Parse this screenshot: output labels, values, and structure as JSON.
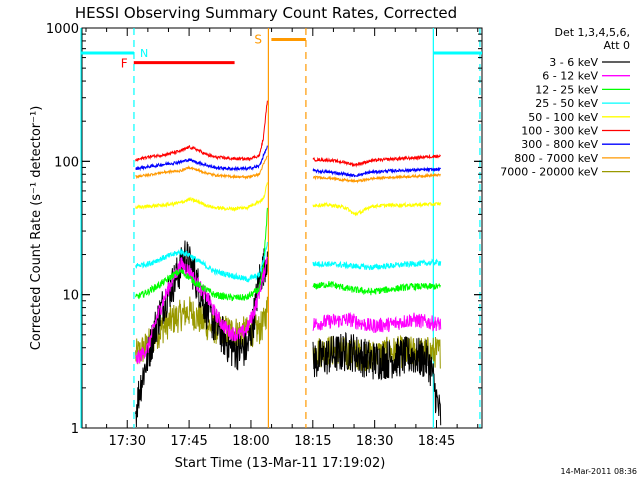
{
  "chart_data": {
    "type": "line",
    "title": "HESSI Observing Summary Count Rates, Corrected",
    "xlabel": "Start Time (13-Mar-11 17:19:02)",
    "ylabel": "Corrected Count Rate (s⁻¹ detector⁻¹)",
    "x_unit": "minutes after 17:19:02",
    "xlim": [
      0,
      97
    ],
    "ylim": [
      1,
      1000
    ],
    "y_scale": "log",
    "x_ticks": [
      {
        "label": "17:30",
        "value": 10.97
      },
      {
        "label": "17:45",
        "value": 25.97
      },
      {
        "label": "18:00",
        "value": 40.97
      },
      {
        "label": "18:15",
        "value": 55.97
      },
      {
        "label": "18:30",
        "value": 70.97
      },
      {
        "label": "18:45",
        "value": 85.97
      }
    ],
    "y_ticks": [
      {
        "label": "1",
        "value": 1
      },
      {
        "label": "10",
        "value": 10
      },
      {
        "label": "100",
        "value": 100
      },
      {
        "label": "1000",
        "value": 1000
      }
    ],
    "legend_title": [
      "Det 1,3,4,5,6,",
      "Att 0"
    ],
    "legend_position": "right, outside plot",
    "gap": [
      45,
      56
    ],
    "series": [
      {
        "name": "3 - 6 keV",
        "color": "#000000",
        "noise": 0.35,
        "points": [
          [
            13,
            1.3
          ],
          [
            14,
            2
          ],
          [
            16,
            3.5
          ],
          [
            18,
            6
          ],
          [
            20,
            9
          ],
          [
            22,
            12
          ],
          [
            24,
            16
          ],
          [
            25,
            20
          ],
          [
            26,
            17
          ],
          [
            27,
            15
          ],
          [
            28,
            12
          ],
          [
            29,
            10
          ],
          [
            30,
            8
          ],
          [
            31,
            7
          ],
          [
            32,
            6
          ],
          [
            34,
            5
          ],
          [
            36,
            4
          ],
          [
            38,
            3.8
          ],
          [
            40,
            4
          ],
          [
            41,
            5
          ],
          [
            42,
            8
          ],
          [
            43,
            13
          ],
          [
            44,
            16
          ],
          [
            45,
            20
          ],
          [
            56,
            3.2
          ],
          [
            60,
            3.5
          ],
          [
            65,
            3.8
          ],
          [
            70,
            3.2
          ],
          [
            75,
            3.3
          ],
          [
            80,
            3.5
          ],
          [
            84,
            3.2
          ],
          [
            85,
            2.5
          ],
          [
            86,
            1.6
          ],
          [
            87,
            1.2
          ]
        ]
      },
      {
        "name": "6 - 12 keV",
        "color": "#ff00ff",
        "noise": 0.13,
        "points": [
          [
            13,
            3.2
          ],
          [
            16,
            4
          ],
          [
            18,
            6.5
          ],
          [
            20,
            9.5
          ],
          [
            22,
            13
          ],
          [
            24,
            17
          ],
          [
            26,
            15
          ],
          [
            28,
            12
          ],
          [
            30,
            10
          ],
          [
            32,
            7.5
          ],
          [
            34,
            6
          ],
          [
            36,
            5.2
          ],
          [
            38,
            5
          ],
          [
            40,
            5.5
          ],
          [
            42,
            8
          ],
          [
            44,
            14
          ],
          [
            45,
            20
          ],
          [
            56,
            6
          ],
          [
            60,
            6.3
          ],
          [
            65,
            6.5
          ],
          [
            70,
            5.8
          ],
          [
            75,
            6
          ],
          [
            80,
            6.5
          ],
          [
            87,
            6
          ]
        ]
      },
      {
        "name": "12 - 25 keV",
        "color": "#00ff00",
        "noise": 0.06,
        "points": [
          [
            13,
            9.5
          ],
          [
            16,
            10.5
          ],
          [
            18,
            11.5
          ],
          [
            20,
            12.5
          ],
          [
            22,
            14
          ],
          [
            24,
            15
          ],
          [
            26,
            13.5
          ],
          [
            28,
            12
          ],
          [
            30,
            11
          ],
          [
            32,
            10
          ],
          [
            36,
            9.5
          ],
          [
            40,
            9.5
          ],
          [
            43,
            11
          ],
          [
            44,
            16
          ],
          [
            45,
            45
          ],
          [
            56,
            11.5
          ],
          [
            60,
            12
          ],
          [
            65,
            11
          ],
          [
            70,
            10.5
          ],
          [
            75,
            11
          ],
          [
            80,
            11.5
          ],
          [
            87,
            11.5
          ]
        ]
      },
      {
        "name": "25 - 50 keV",
        "color": "#00ffff",
        "noise": 0.05,
        "points": [
          [
            13,
            16.5
          ],
          [
            16,
            17
          ],
          [
            18,
            18
          ],
          [
            20,
            19
          ],
          [
            22,
            20
          ],
          [
            24,
            21
          ],
          [
            26,
            20
          ],
          [
            28,
            18
          ],
          [
            30,
            16.5
          ],
          [
            32,
            15
          ],
          [
            36,
            14
          ],
          [
            40,
            13
          ],
          [
            43,
            14
          ],
          [
            44,
            18
          ],
          [
            45,
            25
          ],
          [
            56,
            17
          ],
          [
            60,
            17
          ],
          [
            65,
            16.5
          ],
          [
            70,
            16
          ],
          [
            75,
            16.5
          ],
          [
            80,
            17
          ],
          [
            87,
            17.5
          ]
        ]
      },
      {
        "name": "50 - 100 keV",
        "color": "#ffff00",
        "noise": 0.03,
        "points": [
          [
            13,
            45
          ],
          [
            16,
            46
          ],
          [
            20,
            47
          ],
          [
            24,
            49
          ],
          [
            26,
            52
          ],
          [
            28,
            50
          ],
          [
            30,
            47
          ],
          [
            32,
            45
          ],
          [
            36,
            44
          ],
          [
            40,
            45
          ],
          [
            44,
            52
          ],
          [
            45,
            70
          ],
          [
            56,
            47
          ],
          [
            60,
            47
          ],
          [
            64,
            45
          ],
          [
            66,
            40
          ],
          [
            68,
            42
          ],
          [
            70,
            46
          ],
          [
            75,
            47
          ],
          [
            80,
            47
          ],
          [
            87,
            48
          ]
        ]
      },
      {
        "name": "100 - 300 keV",
        "color": "#ff0000",
        "noise": 0.025,
        "points": [
          [
            13,
            102
          ],
          [
            16,
            108
          ],
          [
            20,
            112
          ],
          [
            24,
            120
          ],
          [
            26,
            128
          ],
          [
            28,
            122
          ],
          [
            30,
            113
          ],
          [
            32,
            108
          ],
          [
            36,
            105
          ],
          [
            40,
            104
          ],
          [
            43,
            110
          ],
          [
            44,
            150
          ],
          [
            45,
            300
          ],
          [
            56,
            103
          ],
          [
            60,
            102
          ],
          [
            64,
            98
          ],
          [
            66,
            94
          ],
          [
            68,
            97
          ],
          [
            70,
            101
          ],
          [
            75,
            104
          ],
          [
            80,
            106
          ],
          [
            87,
            110
          ]
        ]
      },
      {
        "name": "300 - 800 keV",
        "color": "#0000ff",
        "noise": 0.025,
        "points": [
          [
            13,
            88
          ],
          [
            16,
            91
          ],
          [
            20,
            95
          ],
          [
            24,
            99
          ],
          [
            26,
            103
          ],
          [
            28,
            98
          ],
          [
            30,
            94
          ],
          [
            32,
            90
          ],
          [
            36,
            88
          ],
          [
            40,
            88
          ],
          [
            43,
            92
          ],
          [
            44,
            110
          ],
          [
            45,
            130
          ],
          [
            56,
            85
          ],
          [
            60,
            83
          ],
          [
            64,
            80
          ],
          [
            66,
            78
          ],
          [
            68,
            80
          ],
          [
            70,
            83
          ],
          [
            75,
            85
          ],
          [
            80,
            86
          ],
          [
            87,
            87
          ]
        ]
      },
      {
        "name": "800 - 7000 keV",
        "color": "#ff9900",
        "noise": 0.02,
        "points": [
          [
            13,
            77
          ],
          [
            16,
            79
          ],
          [
            20,
            83
          ],
          [
            24,
            85
          ],
          [
            26,
            90
          ],
          [
            28,
            86
          ],
          [
            30,
            82
          ],
          [
            32,
            79
          ],
          [
            36,
            77
          ],
          [
            40,
            76
          ],
          [
            43,
            80
          ],
          [
            44,
            95
          ],
          [
            45,
            110
          ],
          [
            56,
            76
          ],
          [
            60,
            75
          ],
          [
            64,
            72
          ],
          [
            66,
            71
          ],
          [
            68,
            72
          ],
          [
            70,
            74
          ],
          [
            75,
            76
          ],
          [
            80,
            77
          ],
          [
            87,
            79
          ]
        ]
      },
      {
        "name": "7000 - 20000 keV",
        "color": "#999900",
        "noise": 0.28,
        "points": [
          [
            13,
            3.5
          ],
          [
            14,
            3.7
          ],
          [
            16,
            4.2
          ],
          [
            18,
            5
          ],
          [
            20,
            5.8
          ],
          [
            22,
            6.5
          ],
          [
            24,
            7
          ],
          [
            26,
            7.5
          ],
          [
            28,
            6.8
          ],
          [
            30,
            6
          ],
          [
            32,
            5.6
          ],
          [
            36,
            5.3
          ],
          [
            40,
            5.2
          ],
          [
            43,
            5.5
          ],
          [
            44,
            6
          ],
          [
            45,
            8
          ],
          [
            56,
            3.7
          ],
          [
            60,
            3.8
          ],
          [
            65,
            3.6
          ],
          [
            70,
            3.5
          ],
          [
            75,
            3.7
          ],
          [
            80,
            3.7
          ],
          [
            87,
            3.7
          ]
        ]
      }
    ],
    "annotations": {
      "cyan_segments": [
        {
          "label": "",
          "x": [
            -2,
            12.6
          ],
          "y": 650
        },
        {
          "label": "N",
          "x": [
            12.6,
            12.6
          ],
          "y": 650
        },
        {
          "label": "",
          "x": [
            85.2,
            97
          ],
          "y": 650
        }
      ],
      "red_segment": {
        "label": "F",
        "x": [
          12.8,
          37
        ],
        "y": 550
      },
      "orange_segment": {
        "label": "S",
        "x": [
          45.2,
          54.3
        ],
        "y": 820
      },
      "vlines": [
        {
          "x": -2,
          "color": "#00ffff",
          "style": "solid"
        },
        {
          "x": 12.6,
          "color": "#00ffff",
          "style": "dashed"
        },
        {
          "x": 45.2,
          "color": "#ff9900",
          "style": "solid"
        },
        {
          "x": 54.3,
          "color": "#ff9900",
          "style": "dashed"
        },
        {
          "x": 85.2,
          "color": "#00ffff",
          "style": "solid"
        },
        {
          "x": 96.5,
          "color": "#00ffff",
          "style": "dashed"
        }
      ]
    },
    "footer_timestamp": "14-Mar-2011 08:36"
  }
}
